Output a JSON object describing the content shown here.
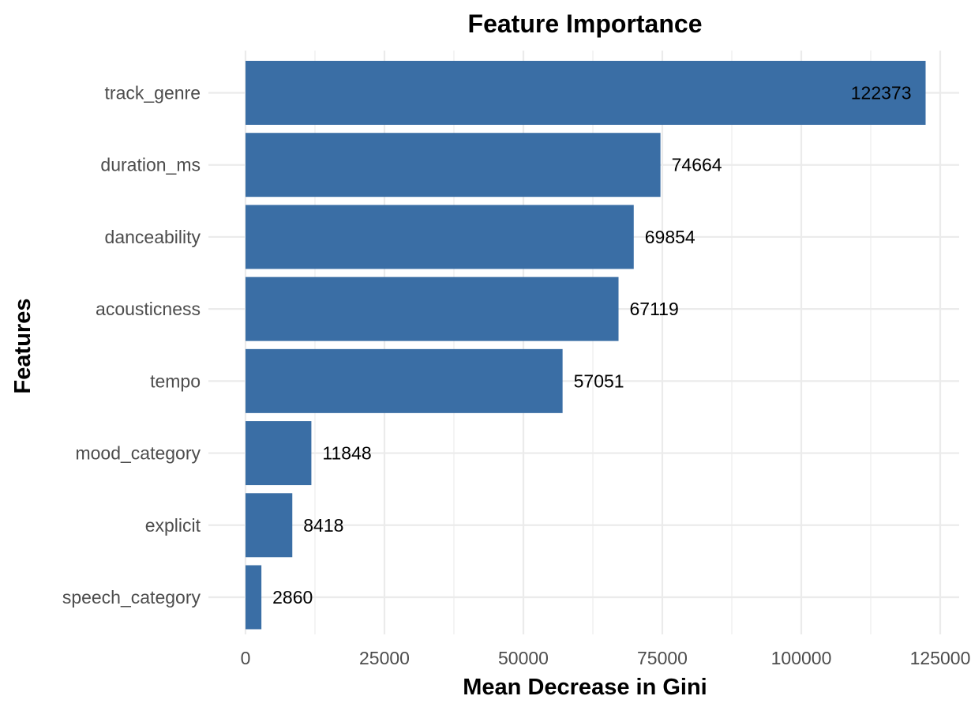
{
  "chart_data": {
    "type": "bar",
    "orientation": "horizontal",
    "title": "Feature Importance",
    "xlabel": "Mean Decrease in Gini",
    "ylabel": "Features",
    "categories": [
      "track_genre",
      "duration_ms",
      "danceability",
      "acousticness",
      "tempo",
      "mood_category",
      "explicit",
      "speech_category"
    ],
    "values": [
      122373,
      74664,
      69854,
      67119,
      57051,
      11848,
      8418,
      2860
    ],
    "value_labels": [
      "122373",
      "74664",
      "69854",
      "67119",
      "57051",
      "11848",
      "8418",
      "2860"
    ],
    "x_ticks": [
      0,
      25000,
      50000,
      75000,
      100000,
      125000
    ],
    "x_tick_labels": [
      "0",
      "25000",
      "50000",
      "75000",
      "100000",
      "125000"
    ],
    "xlim": [
      0,
      125000
    ],
    "grid": true,
    "legend": "none",
    "bar_color": "#3a6ea5"
  }
}
